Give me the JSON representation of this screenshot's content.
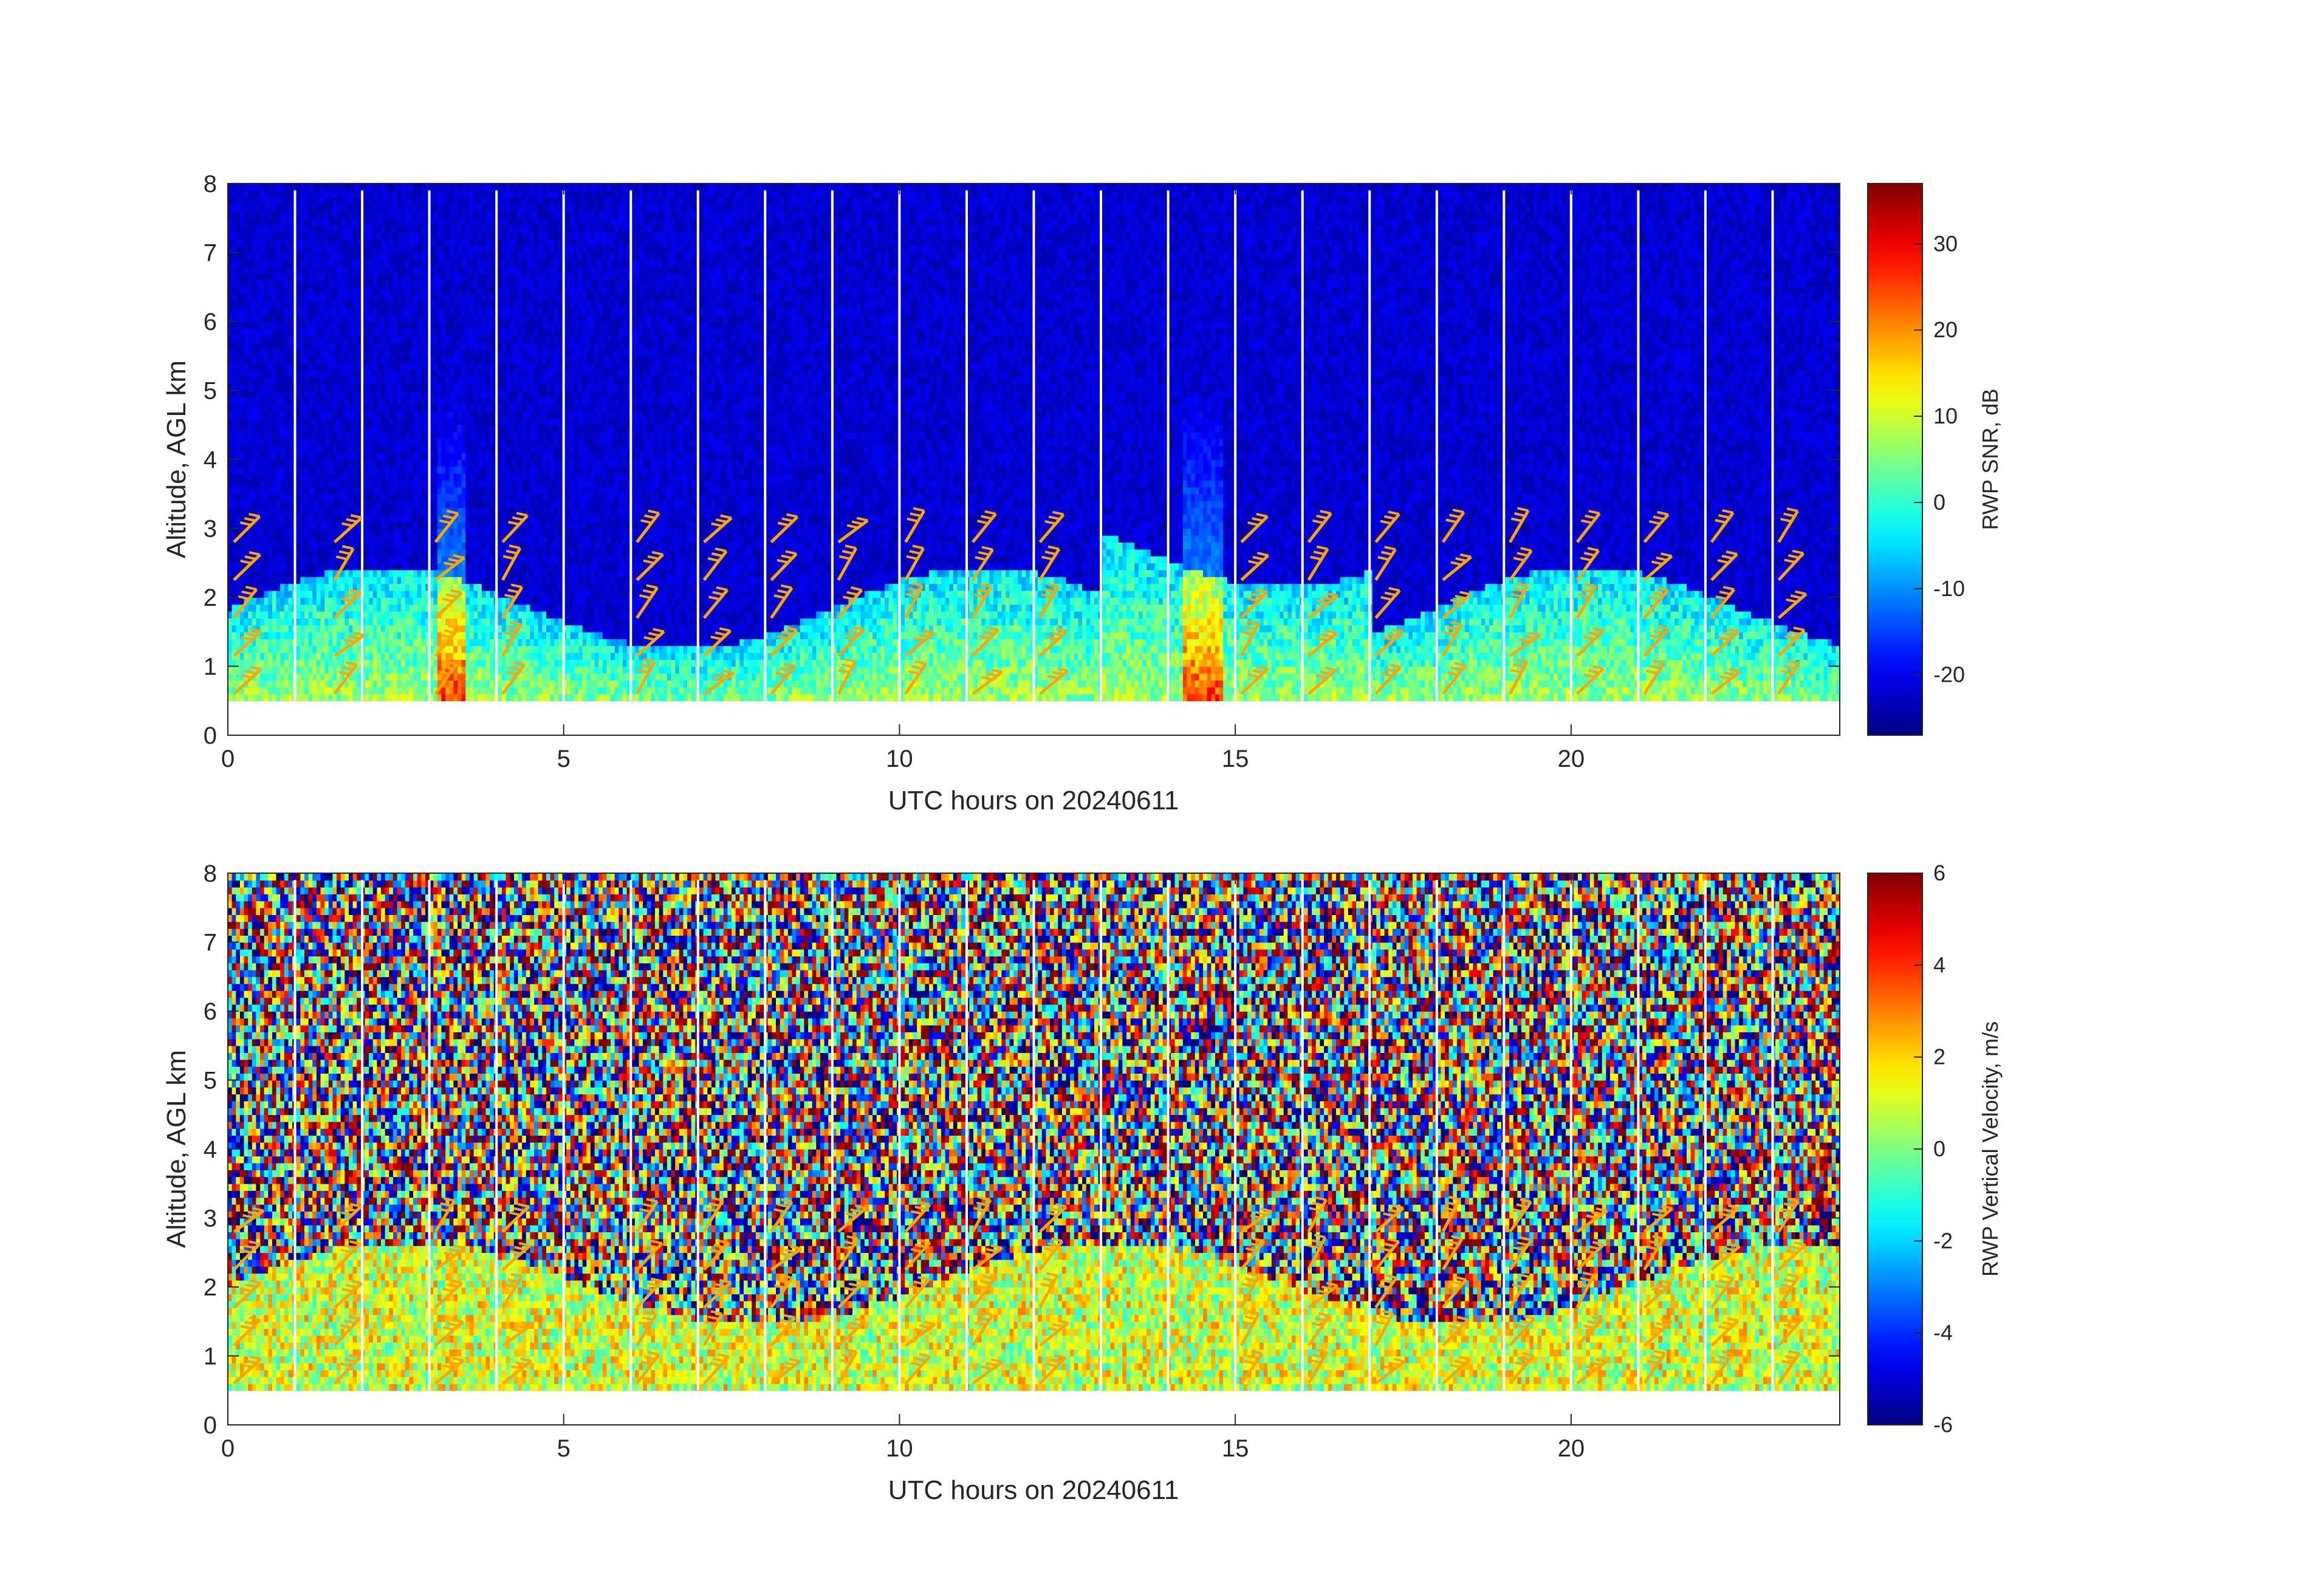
{
  "chart_data": [
    {
      "type": "heatmap",
      "overlay": "wind-barbs",
      "xlabel": "UTC hours on 20240611",
      "ylabel": "Altitude, AGL km",
      "xlim": [
        0,
        24
      ],
      "ylim": [
        0,
        8
      ],
      "xticks": [
        0,
        5,
        10,
        15,
        20
      ],
      "yticks": [
        0,
        1,
        2,
        3,
        4,
        5,
        6,
        7,
        8
      ],
      "colorbar": {
        "label": "RWP SNR, dB",
        "range": [
          -27,
          37
        ],
        "ticks": [
          -20,
          -10,
          0,
          10,
          20,
          30
        ],
        "colormap": "jet"
      },
      "data_altitude_range_km": [
        0.5,
        7.9
      ],
      "gap_times_h": [
        1.0,
        2.0,
        3.0,
        4.0,
        5.0,
        6.0,
        7.0,
        8.0,
        9.0,
        10.0,
        11.0,
        12.0,
        13.0,
        14.0,
        15.0,
        16.0,
        17.0,
        18.0,
        19.0,
        20.0,
        21.0,
        22.0,
        23.0
      ],
      "barb_color": "#ffa500"
    },
    {
      "type": "heatmap",
      "overlay": "wind-barbs",
      "xlabel": "UTC hours on 20240611",
      "ylabel": "Altitude, AGL km",
      "xlim": [
        0,
        24
      ],
      "ylim": [
        0,
        8
      ],
      "xticks": [
        0,
        5,
        10,
        15,
        20
      ],
      "yticks": [
        0,
        1,
        2,
        3,
        4,
        5,
        6,
        7,
        8
      ],
      "colorbar": {
        "label": "RWP Vertical Velocity, m/s",
        "range": [
          -6,
          6
        ],
        "ticks": [
          -6,
          -4,
          -2,
          0,
          2,
          4,
          6
        ],
        "colormap": "jet"
      },
      "data_altitude_range_km": [
        0.5,
        7.9
      ],
      "gap_times_h": [
        1.0,
        2.0,
        3.0,
        4.0,
        5.0,
        6.0,
        7.0,
        8.0,
        9.0,
        10.0,
        11.0,
        12.0,
        13.0,
        14.0,
        15.0,
        16.0,
        17.0,
        18.0,
        19.0,
        20.0,
        21.0,
        22.0,
        23.0
      ],
      "barb_color": "#ffa500"
    }
  ]
}
